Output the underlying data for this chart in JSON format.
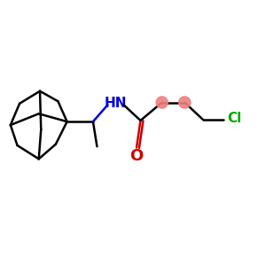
{
  "bg_color": "#ffffff",
  "bond_color": "#000000",
  "nh_color": "#0000dd",
  "o_color": "#cc0000",
  "cl_color": "#00aa00",
  "ch2_dot_color": "#f08080",
  "lw": 1.8,
  "fig_w": 3.0,
  "fig_h": 3.0,
  "dpi": 100,
  "xlim": [
    0,
    10
  ],
  "ylim": [
    0,
    10
  ]
}
